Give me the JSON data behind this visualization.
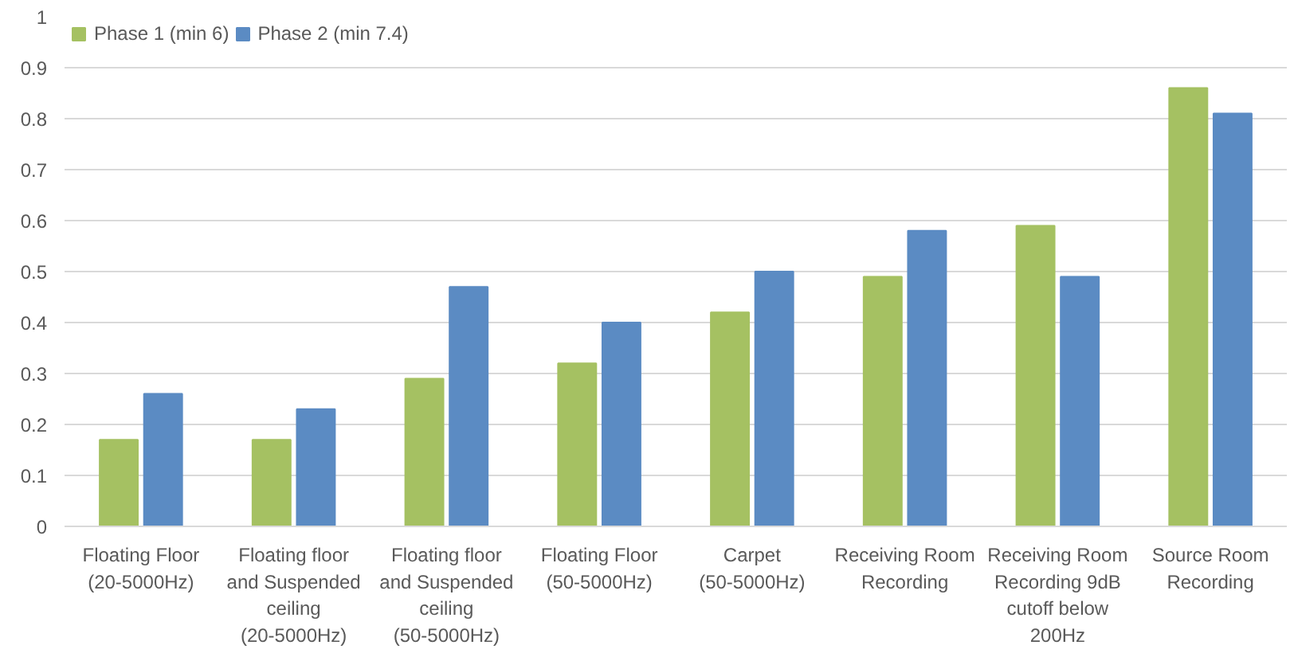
{
  "chart_data": {
    "type": "bar",
    "categories": [
      "Floating Floor (20-5000Hz)",
      "Floating floor and Suspended ceiling (20-5000Hz)",
      "Floating floor and Suspended ceiling (50-5000Hz)",
      "Floating Floor (50-5000Hz)",
      "Carpet (50-5000Hz)",
      "Receiving Room Recording",
      "Receiving Room Recording 9dB cutoff below 200Hz",
      "Source Room Recording"
    ],
    "series": [
      {
        "name": "Phase 1 (min 6)",
        "color": "#a5c162",
        "values": [
          0.17,
          0.17,
          0.29,
          0.32,
          0.42,
          0.49,
          0.59,
          0.86
        ]
      },
      {
        "name": "Phase 2 (min 7.4)",
        "color": "#5b8bc3",
        "values": [
          0.26,
          0.23,
          0.47,
          0.4,
          0.5,
          0.58,
          0.49,
          0.81
        ]
      }
    ],
    "ylim": [
      0,
      1
    ],
    "yticks": [
      0,
      0.1,
      0.2,
      0.3,
      0.4,
      0.5,
      0.6,
      0.7,
      0.8,
      0.9,
      1
    ],
    "grid": "y",
    "legend": "top left"
  }
}
